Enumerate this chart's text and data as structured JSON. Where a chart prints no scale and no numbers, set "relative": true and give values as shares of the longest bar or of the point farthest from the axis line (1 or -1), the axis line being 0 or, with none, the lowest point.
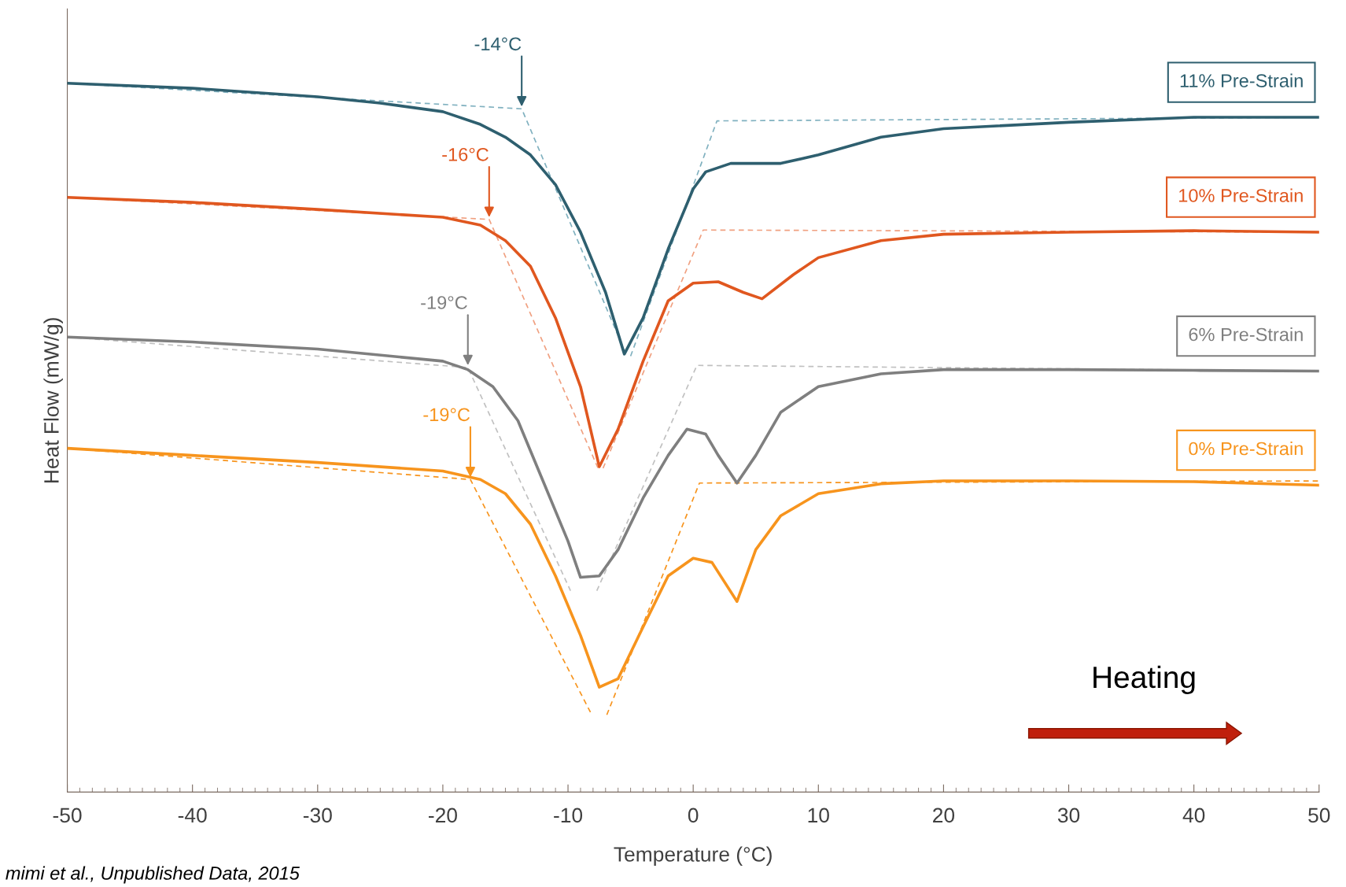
{
  "chart_data": {
    "type": "line",
    "relative": true,
    "xlabel": "Temperature (°C)",
    "ylabel": "Heat Flow (mW/g)",
    "xlim": [
      -50,
      50
    ],
    "xticks": [
      -50,
      -40,
      -30,
      -20,
      -10,
      0,
      10,
      20,
      30,
      40,
      50
    ],
    "tick_labels": "x",
    "grid": false,
    "marker": "none",
    "series": [
      {
        "name": "11% Pre-Strain",
        "color": "#2e5f6f",
        "x": [
          -50,
          -40,
          -30,
          -25,
          -20,
          -17,
          -15,
          -13,
          -11,
          -9,
          -7,
          -5.5,
          -4,
          -2,
          0,
          1,
          3,
          5,
          7,
          10,
          15,
          20,
          30,
          40,
          50
        ],
        "values": [
          1.0,
          0.993,
          0.981,
          0.972,
          0.96,
          0.942,
          0.924,
          0.899,
          0.857,
          0.79,
          0.705,
          0.618,
          0.669,
          0.766,
          0.851,
          0.875,
          0.887,
          0.887,
          0.887,
          0.899,
          0.924,
          0.936,
          0.945,
          0.952,
          0.952
        ]
      },
      {
        "name": "10% Pre-Strain",
        "color": "#e0571f",
        "x": [
          -50,
          -40,
          -30,
          -20,
          -17,
          -15,
          -13,
          -11,
          -9,
          -7.5,
          -6,
          -4,
          -2,
          0,
          2,
          4,
          5.5,
          8,
          10,
          15,
          20,
          30,
          40,
          50
        ],
        "values": [
          0.839,
          0.832,
          0.822,
          0.811,
          0.8,
          0.778,
          0.742,
          0.669,
          0.572,
          0.459,
          0.512,
          0.608,
          0.693,
          0.718,
          0.72,
          0.705,
          0.696,
          0.73,
          0.754,
          0.778,
          0.787,
          0.79,
          0.792,
          0.79
        ]
      },
      {
        "name": "6% Pre-Strain",
        "color": "#7f7f7f",
        "x": [
          -50,
          -40,
          -30,
          -20,
          -18,
          -16,
          -14,
          -12,
          -10,
          -9,
          -7.5,
          -6,
          -4,
          -2,
          -0.5,
          1,
          2,
          3.5,
          5,
          7,
          10,
          15,
          20,
          30,
          40,
          50
        ],
        "values": [
          0.642,
          0.635,
          0.625,
          0.608,
          0.596,
          0.572,
          0.524,
          0.439,
          0.354,
          0.303,
          0.305,
          0.342,
          0.415,
          0.475,
          0.512,
          0.505,
          0.475,
          0.436,
          0.475,
          0.536,
          0.572,
          0.59,
          0.596,
          0.596,
          0.595,
          0.594
        ]
      },
      {
        "name": "0% Pre-Strain",
        "color": "#f7941d",
        "x": [
          -50,
          -40,
          -30,
          -20,
          -17,
          -15,
          -13,
          -11,
          -9,
          -7.5,
          -6,
          -4,
          -2,
          0,
          1.5,
          3.5,
          5,
          7,
          10,
          15,
          20,
          30,
          40,
          50
        ],
        "values": [
          0.485,
          0.475,
          0.465,
          0.453,
          0.441,
          0.421,
          0.378,
          0.305,
          0.221,
          0.148,
          0.16,
          0.233,
          0.305,
          0.33,
          0.324,
          0.269,
          0.342,
          0.39,
          0.421,
          0.435,
          0.439,
          0.439,
          0.438,
          0.433
        ]
      },
      {
        "color": "#7fb0bf",
        "line_style": "dashed",
        "x": [
          -50,
          -13.7,
          -5.3
        ],
        "values": [
          1.0,
          0.964,
          0.615
        ]
      },
      {
        "color": "#7fb0bf",
        "line_style": "dashed",
        "x": [
          -5.0,
          1.9,
          50
        ],
        "values": [
          0.615,
          0.947,
          0.952
        ]
      },
      {
        "color": "#f0a080",
        "line_style": "dashed",
        "x": [
          -50,
          -16.3,
          -7.6
        ],
        "values": [
          0.839,
          0.808,
          0.457
        ]
      },
      {
        "color": "#f0a080",
        "line_style": "dashed",
        "x": [
          -7.2,
          0.8,
          50
        ],
        "values": [
          0.457,
          0.793,
          0.79
        ]
      },
      {
        "color": "#c0c0c0",
        "line_style": "dashed",
        "x": [
          -50,
          -18.0,
          -9.8
        ],
        "values": [
          0.642,
          0.599,
          0.284
        ]
      },
      {
        "color": "#c0c0c0",
        "line_style": "dashed",
        "x": [
          -7.7,
          0.3,
          50
        ],
        "values": [
          0.284,
          0.602,
          0.594
        ]
      },
      {
        "color": "#f7941d",
        "line_style": "dashed",
        "x": [
          -50,
          -17.8,
          -8.1
        ],
        "values": [
          0.485,
          0.441,
          0.109
        ]
      },
      {
        "color": "#f7941d",
        "line_style": "dashed",
        "x": [
          -6.9,
          0.5,
          50
        ],
        "values": [
          0.109,
          0.436,
          0.439
        ]
      }
    ],
    "annotations": [
      {
        "text": "-14°C",
        "x": -13.7,
        "y": 0.964
      },
      {
        "text": "-16°C",
        "x": -16.3,
        "y": 0.808
      },
      {
        "text": "-19°C",
        "x": -18.0,
        "y": 0.599
      },
      {
        "text": "-19°C",
        "x": -17.8,
        "y": 0.441
      },
      "Heating",
      "mimi et al., Unpublished Data, 2015"
    ]
  }
}
